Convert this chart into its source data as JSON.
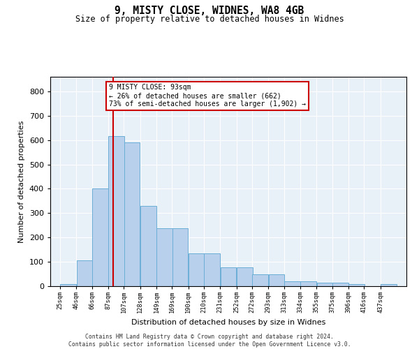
{
  "title_line1": "9, MISTY CLOSE, WIDNES, WA8 4GB",
  "title_line2": "Size of property relative to detached houses in Widnes",
  "xlabel": "Distribution of detached houses by size in Widnes",
  "ylabel": "Number of detached properties",
  "bar_labels": [
    "25sqm",
    "46sqm",
    "66sqm",
    "87sqm",
    "107sqm",
    "128sqm",
    "149sqm",
    "169sqm",
    "190sqm",
    "210sqm",
    "231sqm",
    "252sqm",
    "272sqm",
    "293sqm",
    "313sqm",
    "334sqm",
    "355sqm",
    "375sqm",
    "396sqm",
    "416sqm",
    "437sqm"
  ],
  "left_edges": [
    25,
    46,
    66,
    87,
    107,
    128,
    149,
    169,
    190,
    210,
    231,
    252,
    272,
    293,
    313,
    334,
    355,
    375,
    396,
    416,
    437
  ],
  "bar_heights": [
    8,
    106,
    401,
    617,
    591,
    330,
    238,
    238,
    134,
    134,
    76,
    76,
    50,
    50,
    21,
    21,
    15,
    15,
    8,
    0,
    8
  ],
  "bar_color": "#b8d0eb",
  "bar_edge_color": "#6aaed6",
  "vline_x": 93,
  "vline_color": "#cc0000",
  "annotation_line1": "9 MISTY CLOSE: 93sqm",
  "annotation_line2": "← 26% of detached houses are smaller (662)",
  "annotation_line3": "73% of semi-detached houses are larger (1,902) →",
  "annotation_box_fc": "white",
  "annotation_box_ec": "#cc0000",
  "ylim_max": 860,
  "yticks": [
    0,
    100,
    200,
    300,
    400,
    500,
    600,
    700,
    800
  ],
  "bg_color": "#e8f0f8",
  "grid_color": "#ffffff",
  "footer_line1": "Contains HM Land Registry data © Crown copyright and database right 2024.",
  "footer_line2": "Contains public sector information licensed under the Open Government Licence v3.0.",
  "bin_width": 21
}
